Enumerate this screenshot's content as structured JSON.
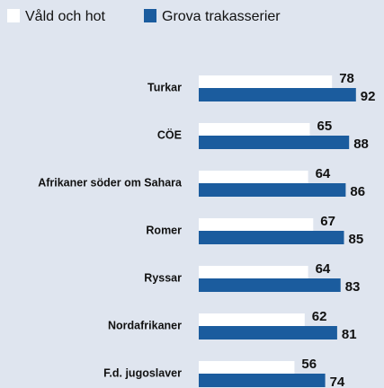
{
  "chart_data": {
    "type": "bar",
    "orientation": "horizontal",
    "categories": [
      "Turkar",
      "CÖE",
      "Afrikaner söder om Sahara",
      "Romer",
      "Ryssar",
      "Nordafrikaner",
      "F.d. jugoslaver"
    ],
    "series": [
      {
        "name": "Våld och hot",
        "color": "#ffffff",
        "values": [
          78,
          65,
          64,
          67,
          64,
          62,
          56
        ]
      },
      {
        "name": "Grova trakasserier",
        "color": "#1b5c9e",
        "values": [
          92,
          88,
          86,
          85,
          83,
          81,
          74
        ]
      }
    ],
    "legend": "top-left"
  }
}
